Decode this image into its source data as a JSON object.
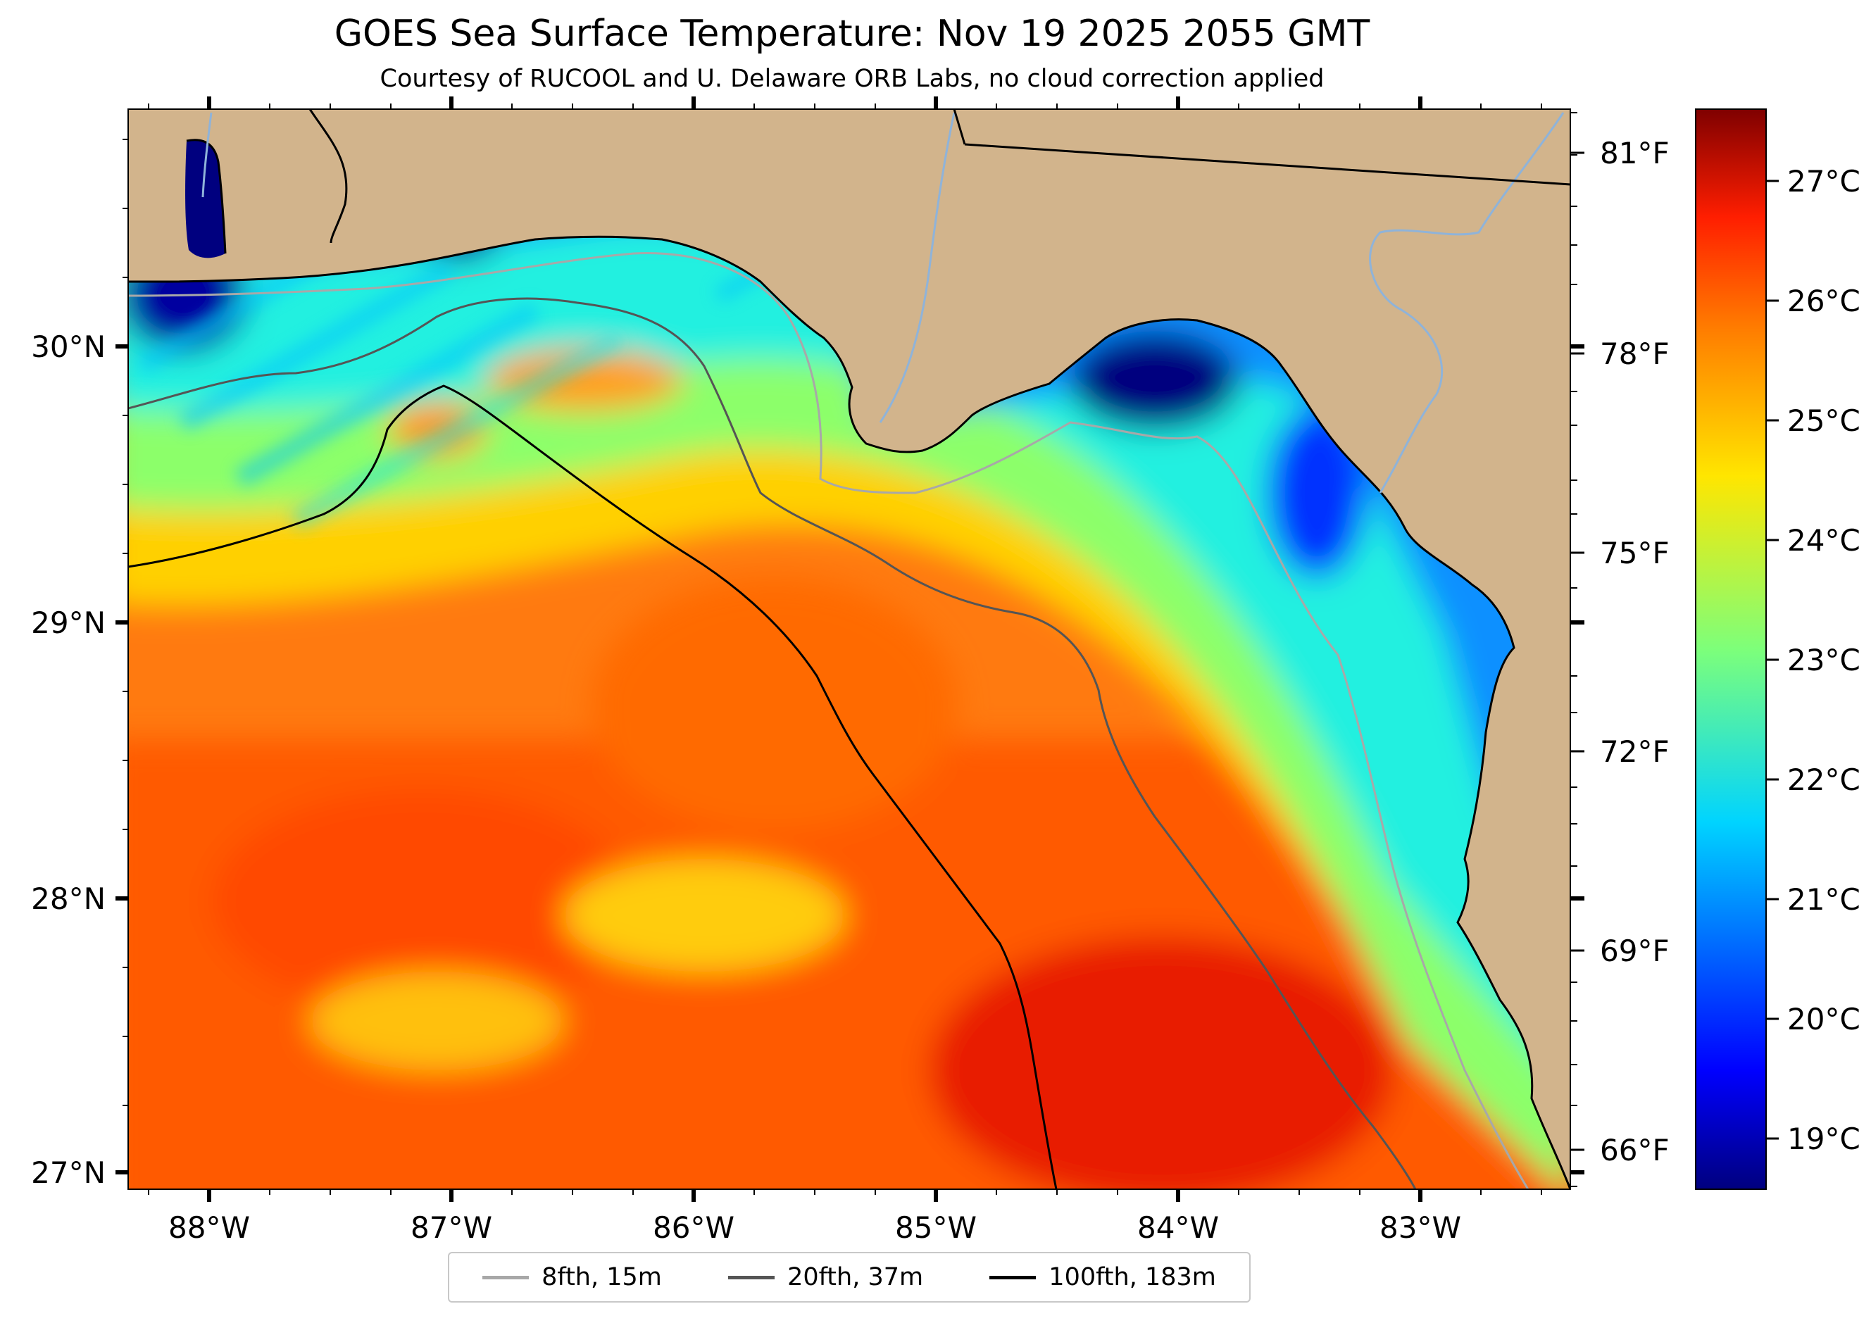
{
  "title": "GOES Sea Surface Temperature: Nov 19 2025 2055 GMT",
  "subtitle": "Courtesy of RUCOOL and U. Delaware ORB Labs, no cloud correction applied",
  "colors": {
    "land": "#d2b48c",
    "coastline": "#000000",
    "river": "#8fb3d9",
    "border": "#000000",
    "isobath_8fth": "#a8a8a8",
    "isobath_20fth": "#555555",
    "isobath_100fth": "#000000"
  },
  "map": {
    "lon_range": [
      -88.34,
      -82.38
    ],
    "lat_range": [
      26.94,
      30.87
    ],
    "lon_ticks": [
      "88°W",
      "87°W",
      "86°W",
      "85°W",
      "84°W",
      "83°W"
    ],
    "lat_ticks": [
      "30°N",
      "29°N",
      "28°N",
      "27°N"
    ],
    "fahrenheit_ticks": [
      "81°F",
      "78°F",
      "75°F",
      "72°F",
      "69°F",
      "66°F"
    ]
  },
  "colorbar": {
    "range_c": [
      18.6,
      27.6
    ],
    "ticks": [
      "27°C",
      "26°C",
      "25°C",
      "24°C",
      "23°C",
      "22°C",
      "21°C",
      "20°C",
      "19°C"
    ],
    "colormap": "jet"
  },
  "legend": {
    "items": [
      {
        "label": "8fth, 15m",
        "color": "#a8a8a8"
      },
      {
        "label": "20fth, 37m",
        "color": "#555555"
      },
      {
        "label": "100fth, 183m",
        "color": "#000000"
      }
    ]
  }
}
